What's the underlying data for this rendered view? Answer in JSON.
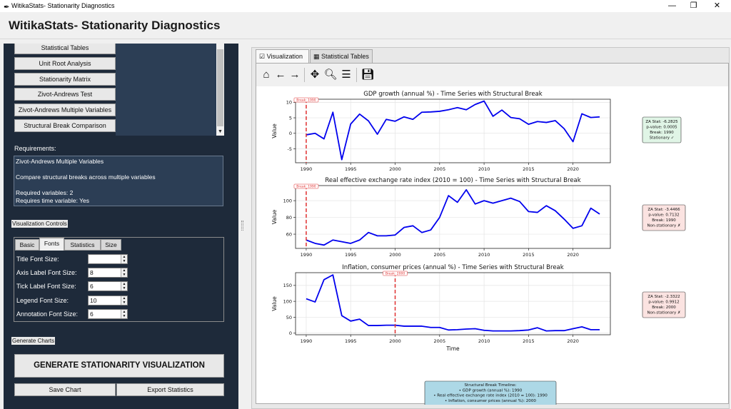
{
  "window": {
    "title": "WitikaStats- Stationarity Diagnostics",
    "app_icon": "feather-icon"
  },
  "header": {
    "title": "WitikaStats- Stationarity Diagnostics"
  },
  "nav": {
    "items": [
      "Statistical Tables",
      "Unit Root Analysis",
      "Stationarity Matrix",
      "Zivot-Andrews Test",
      "Zivot-Andrews Multiple Variables",
      "Structural Break Comparison"
    ]
  },
  "requirements": {
    "label": "Requirements:",
    "lines": [
      "Zivot-Andrews Multiple Variables",
      "",
      "Compare structural breaks across multiple variables",
      "",
      "Required variables: 2",
      "Requires time variable: Yes"
    ]
  },
  "viz_controls": {
    "label": "Visualization Controls",
    "tabs": [
      "Basic",
      "Fonts",
      "Statistics",
      "Size"
    ],
    "active_tab": "Fonts",
    "fields": [
      {
        "label": "Title Font Size:",
        "value": ""
      },
      {
        "label": "Axis Label Font Size:",
        "value": "8"
      },
      {
        "label": "Tick Label Font Size:",
        "value": "6"
      },
      {
        "label": "Legend Font Size:",
        "value": "10"
      },
      {
        "label": "Annotation Font Size:",
        "value": "6"
      }
    ]
  },
  "generate": {
    "label": "Generate Charts",
    "big_button": "GENERATE STATIONARITY VISUALIZATION",
    "save_chart": "Save Chart",
    "export_stats": "Export Statistics"
  },
  "right_tabs": [
    "Visualization",
    "Statistical Tables"
  ],
  "toolbar_icons": [
    "home-icon",
    "back-arrow-icon",
    "forward-arrow-icon",
    "pan-icon",
    "zoom-icon",
    "configure-icon",
    "save-icon"
  ],
  "colors": {
    "line": "#0000ee",
    "break": "#e03030",
    "stationary_box": "#e0f5e6",
    "nonstationary_box": "#fbe3e1",
    "summary_box": "#add8e6"
  },
  "chart_data": [
    {
      "type": "line",
      "title": "GDP growth (annual %) - Time Series with Structural Break",
      "ylabel": "Value",
      "xlabel": "",
      "x_ticks": [
        1990,
        1995,
        2000,
        2005,
        2010,
        2015,
        2020
      ],
      "y_ticks": [
        -5,
        0,
        5,
        10
      ],
      "xlim": [
        1988.8,
        2024.2
      ],
      "ylim": [
        -9.5,
        11
      ],
      "x": [
        1990,
        1991,
        1992,
        1993,
        1994,
        1995,
        1996,
        1997,
        1998,
        1999,
        2000,
        2001,
        2002,
        2003,
        2004,
        2005,
        2006,
        2007,
        2008,
        2009,
        2010,
        2011,
        2012,
        2013,
        2014,
        2015,
        2016,
        2017,
        2018,
        2019,
        2020,
        2021,
        2022,
        2023
      ],
      "values": [
        -0.5,
        0,
        -1.8,
        6.8,
        -8.5,
        3,
        6.2,
        4,
        -0.3,
        4.5,
        3.9,
        5.3,
        4.5,
        6.8,
        6.9,
        7.1,
        7.6,
        8.3,
        7.6,
        9.3,
        10.4,
        5.5,
        7.5,
        5.1,
        4.7,
        2.9,
        3.8,
        3.5,
        4.1,
        1.5,
        -2.7,
        6.3,
        5.1,
        5.3
      ],
      "break_year": 1990,
      "break_label": "Break: 1990",
      "stats": [
        "ZA Stat: -6.2825",
        "p-value: 0.0005",
        "Break: 1990",
        "Stationary ✓"
      ],
      "stationary": true
    },
    {
      "type": "line",
      "title": "Real effective exchange rate index (2010 = 100) - Time Series with Structural Break",
      "ylabel": "Value",
      "xlabel": "",
      "x_ticks": [
        1990,
        1995,
        2000,
        2005,
        2010,
        2015,
        2020
      ],
      "y_ticks": [
        60,
        80,
        100
      ],
      "xlim": [
        1988.8,
        2024.2
      ],
      "ylim": [
        43,
        118
      ],
      "x": [
        1990,
        1991,
        1992,
        1993,
        1994,
        1995,
        1996,
        1997,
        1998,
        1999,
        2000,
        2001,
        2002,
        2003,
        2004,
        2005,
        2006,
        2007,
        2008,
        2009,
        2010,
        2011,
        2012,
        2013,
        2014,
        2015,
        2016,
        2017,
        2018,
        2019,
        2020,
        2021,
        2022,
        2023
      ],
      "values": [
        53,
        49,
        47,
        53,
        51,
        49,
        53,
        62,
        58,
        58,
        59,
        68,
        70,
        62,
        65,
        80,
        106,
        98,
        113,
        96,
        100,
        97,
        100,
        103,
        99,
        87,
        86,
        94,
        88,
        78,
        67,
        70,
        91,
        84
      ],
      "break_year": 1990,
      "break_label": "Break: 1990",
      "stats": [
        "ZA Stat: -3.4466",
        "p-value: 0.7132",
        "Break: 1990",
        "Non-stationary ✗"
      ],
      "stationary": false
    },
    {
      "type": "line",
      "title": "Inflation, consumer prices (annual %) - Time Series with Structural Break",
      "ylabel": "Value",
      "xlabel": "Time",
      "x_ticks": [
        1990,
        1995,
        2000,
        2005,
        2010,
        2015,
        2020
      ],
      "y_ticks": [
        0,
        50,
        100,
        150
      ],
      "xlim": [
        1988.8,
        2024.2
      ],
      "ylim": [
        -5,
        190
      ],
      "x": [
        1990,
        1991,
        1992,
        1993,
        1994,
        1995,
        1996,
        1997,
        1998,
        1999,
        2000,
        2001,
        2002,
        2003,
        2004,
        2005,
        2006,
        2007,
        2008,
        2009,
        2010,
        2011,
        2012,
        2013,
        2014,
        2015,
        2016,
        2017,
        2018,
        2019,
        2020,
        2021,
        2022,
        2023
      ],
      "values": [
        108,
        98,
        168,
        183,
        55,
        38,
        44,
        24,
        24,
        25,
        25,
        22,
        22,
        22,
        18,
        18,
        10,
        11,
        13,
        14,
        9,
        7,
        7,
        7,
        8,
        10,
        17,
        7,
        8,
        8,
        14,
        20,
        11,
        11
      ],
      "break_year": 2000,
      "break_label": "Break: 2000",
      "stats": [
        "ZA Stat: -2.3322",
        "p-value: 0.9912",
        "Break: 2000",
        "Non-stationary ✗"
      ],
      "stationary": false
    }
  ],
  "summary": {
    "lines": [
      "Structural Break Timeline:",
      "• GDP growth (annual %): 1990",
      "• Real effective exchange rate index (2010 = 100): 1990",
      "• Inflation, consumer prices (annual %): 2000",
      "",
      "Stationary with Breaks: 1/3"
    ]
  }
}
